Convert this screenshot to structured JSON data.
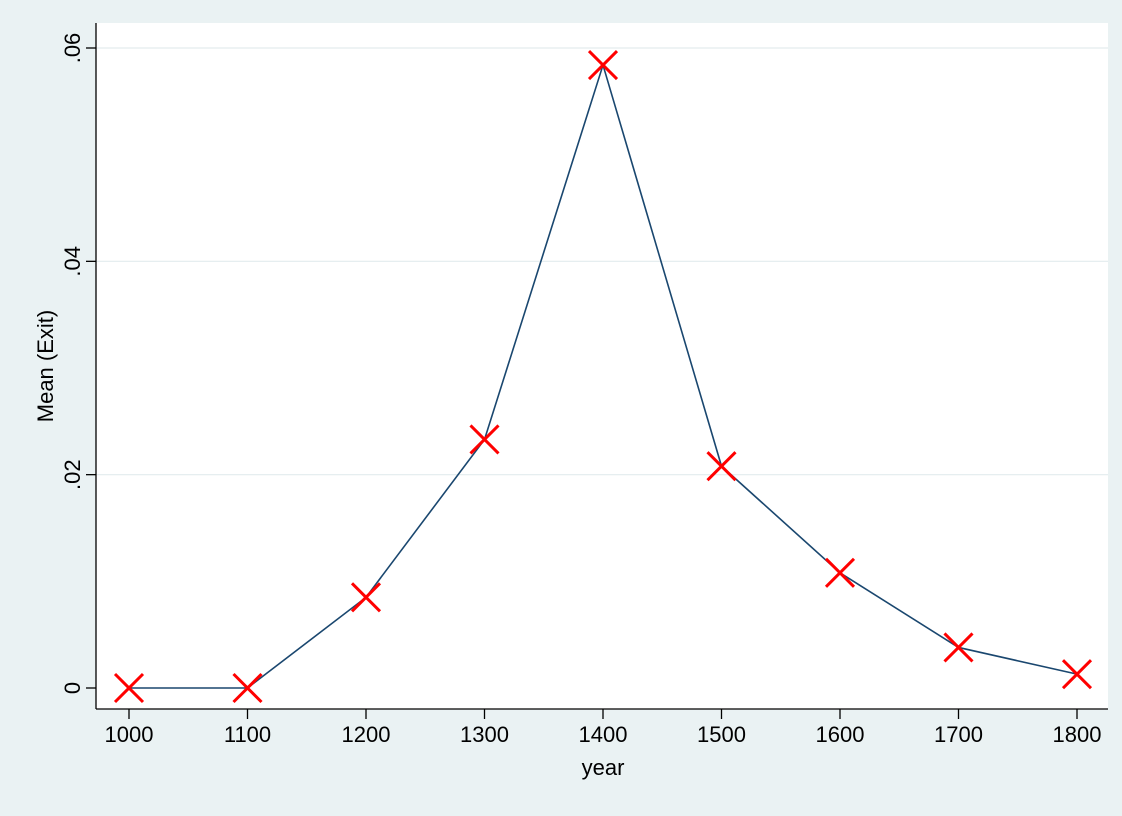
{
  "chart_data": {
    "type": "line",
    "xlabel": "year",
    "ylabel": "Mean (Exit)",
    "x": [
      1000,
      1100,
      1200,
      1300,
      1400,
      1500,
      1600,
      1700,
      1800
    ],
    "series": [
      {
        "values": [
          0.0,
          0.0,
          0.0085,
          0.0233,
          0.0584,
          0.0208,
          0.0108,
          0.0038,
          0.0013
        ]
      }
    ],
    "xticks": [
      1000,
      1100,
      1200,
      1300,
      1400,
      1500,
      1600,
      1700,
      1800
    ],
    "xtick_labels": [
      "1000",
      "1100",
      "1200",
      "1300",
      "1400",
      "1500",
      "1600",
      "1700",
      "1800"
    ],
    "yticks": [
      0,
      0.02,
      0.04,
      0.06
    ],
    "ytick_labels": [
      "0",
      ".02",
      ".04",
      ".06"
    ],
    "xlim": [
      1000,
      1800
    ],
    "ylim": [
      0,
      0.06
    ],
    "grid": "horizontal",
    "line_color": "#1a476f",
    "marker": "x",
    "marker_color": "#ff0000",
    "background_color": "#eaf2f3",
    "plot_background_color": "#ffffff"
  }
}
